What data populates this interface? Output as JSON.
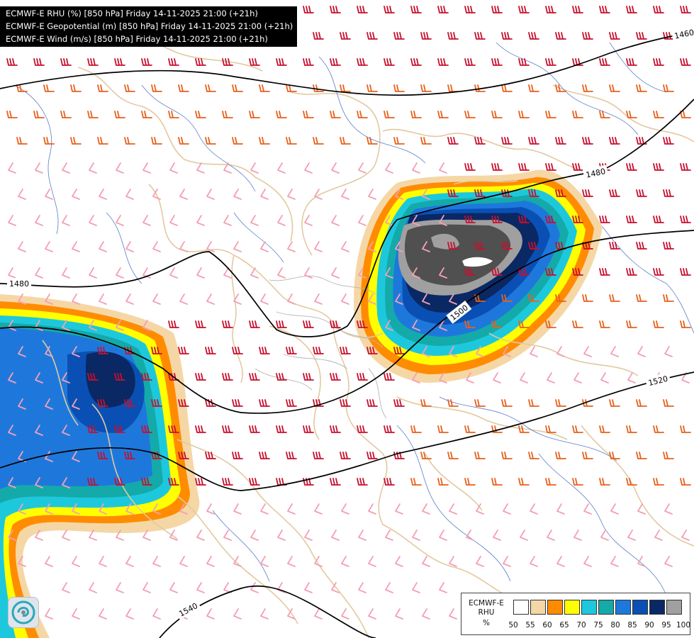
{
  "titles": [
    "ECMWF-E RHU (%) [850 hPa] Friday 14-11-2025 21:00 (+21h)",
    "ECMWF-E Geopotential (m) [850 hPa] Friday 14-11-2025 21:00 (+21h)",
    "ECMWF-E Wind (m/s) [850 hPa] Friday 14-11-2025 21:00 (+21h)"
  ],
  "legend": {
    "line1": "ECMWF-E",
    "line2": "RHU",
    "unit": "%",
    "ticks": [
      "50",
      "55",
      "60",
      "65",
      "70",
      "75",
      "80",
      "85",
      "90",
      "95",
      "100"
    ],
    "colors": [
      "#ffffff",
      "#f5d7a6",
      "#ff8c00",
      "#ffff00",
      "#1ec8dc",
      "#14aaaa",
      "#1e78dc",
      "#0a50b4",
      "#0a2864",
      "#a0a0a0",
      "#505050"
    ]
  },
  "contours": [
    {
      "label": "1480"
    },
    {
      "label": "1480"
    },
    {
      "label": "1500"
    },
    {
      "label": "1520"
    },
    {
      "label": "1540"
    }
  ],
  "top_right_label": "1460",
  "colors": {
    "wind_strong": "#c8102e",
    "wind_medium": "#e8601c",
    "wind_light": "#f4a0b4",
    "borders": "#e2c9a0",
    "rivers": "#5a7cc8"
  },
  "icons": [
    "company-logo-icon"
  ]
}
